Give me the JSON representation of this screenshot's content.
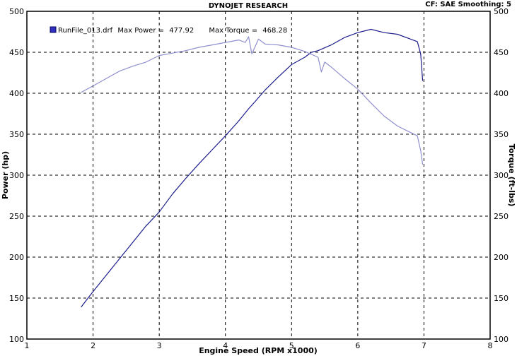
{
  "header": {
    "title": "DYNOJET RESEARCH",
    "correction": "CF: SAE  Smoothing: 5"
  },
  "chart_data": {
    "type": "line",
    "title": "DYNOJET RESEARCH",
    "xlabel": "Engine Speed (RPM x1000)",
    "ylabel_left": "Power (hp)",
    "ylabel_right": "Torque (ft-lbs)",
    "xlim": [
      1,
      8
    ],
    "ylim": [
      100,
      500
    ],
    "x_ticks": [
      1,
      2,
      3,
      4,
      5,
      6,
      7,
      8
    ],
    "y_ticks": [
      100,
      150,
      200,
      250,
      300,
      350,
      400,
      450,
      500
    ],
    "grid": true,
    "legend_position": "top-left",
    "legend": {
      "entry": "RunFile_013.drf",
      "max_power_label": "Max Power =",
      "max_power_value": "477.92",
      "max_torque_label": "Max Torque =",
      "max_torque_value": "468.28"
    },
    "colors": {
      "power": "#1c1c8c",
      "torque": "#8f8fd0",
      "grid": "#000000"
    },
    "series": [
      {
        "key": "power",
        "x": [
          1.82,
          2.0,
          2.2,
          2.4,
          2.6,
          2.8,
          3.0,
          3.2,
          3.4,
          3.6,
          3.8,
          4.0,
          4.2,
          4.35,
          4.45,
          4.6,
          4.8,
          5.0,
          5.2,
          5.3,
          5.4,
          5.6,
          5.8,
          6.0,
          6.2,
          6.4,
          6.6,
          6.8,
          6.9,
          6.95,
          6.98
        ],
        "values": [
          139,
          158,
          178,
          198,
          218,
          238,
          255,
          277,
          296,
          314,
          331,
          348,
          366,
          381,
          390,
          404,
          420,
          435,
          444,
          450,
          452,
          459,
          468,
          474,
          478,
          474,
          472,
          466,
          463,
          448,
          415
        ]
      },
      {
        "key": "torque",
        "x": [
          1.82,
          2.0,
          2.2,
          2.4,
          2.6,
          2.8,
          3.0,
          3.2,
          3.4,
          3.6,
          3.8,
          4.0,
          4.2,
          4.3,
          4.35,
          4.4,
          4.5,
          4.6,
          4.8,
          5.0,
          5.2,
          5.4,
          5.45,
          5.5,
          5.6,
          5.8,
          6.0,
          6.2,
          6.4,
          6.6,
          6.8,
          6.9,
          6.95,
          6.98
        ],
        "values": [
          401,
          409,
          418,
          427,
          433,
          438,
          446,
          449,
          452,
          456,
          459,
          462,
          465,
          462,
          469,
          448,
          466,
          460,
          459,
          456,
          451,
          444,
          426,
          438,
          432,
          418,
          405,
          388,
          372,
          360,
          352,
          348,
          330,
          313
        ]
      }
    ]
  }
}
